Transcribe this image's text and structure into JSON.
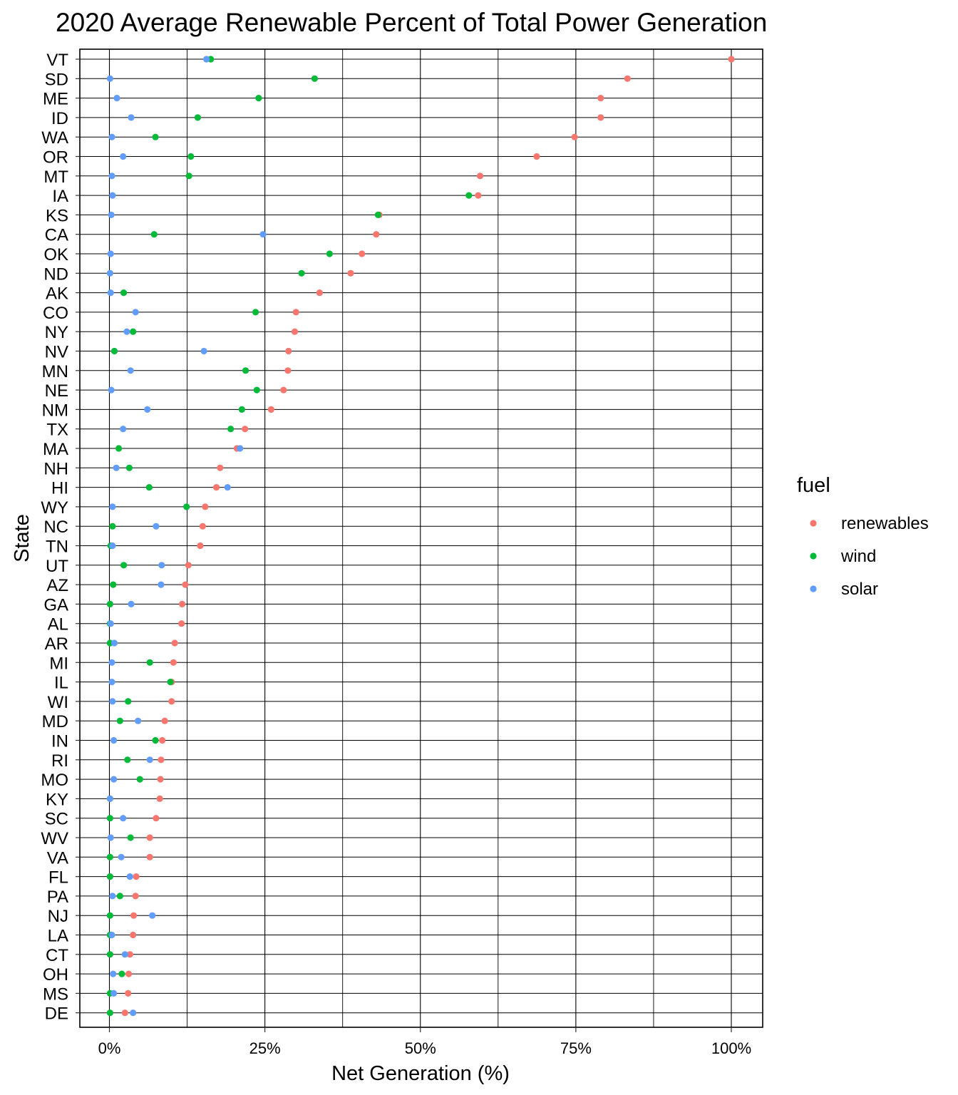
{
  "chart_data": {
    "type": "scatter",
    "title": "2020 Average Renewable Percent of Total Power Generation",
    "xlabel": "Net Generation (%)",
    "ylabel": "State",
    "xlim": [
      0,
      100
    ],
    "x_ticks": [
      0,
      25,
      50,
      75,
      100
    ],
    "x_tick_labels": [
      "0%",
      "25%",
      "50%",
      "75%",
      "100%"
    ],
    "grid": true,
    "legend": {
      "title": "fuel",
      "position": "right"
    },
    "categories": [
      "VT",
      "SD",
      "ME",
      "ID",
      "WA",
      "OR",
      "MT",
      "IA",
      "KS",
      "CA",
      "OK",
      "ND",
      "AK",
      "CO",
      "NY",
      "NV",
      "MN",
      "NE",
      "NM",
      "TX",
      "MA",
      "NH",
      "HI",
      "WY",
      "NC",
      "TN",
      "UT",
      "AZ",
      "GA",
      "AL",
      "AR",
      "MI",
      "IL",
      "WI",
      "MD",
      "IN",
      "RI",
      "MO",
      "KY",
      "SC",
      "WV",
      "VA",
      "FL",
      "PA",
      "NJ",
      "LA",
      "CT",
      "OH",
      "MS",
      "DE"
    ],
    "series": [
      {
        "name": "renewables",
        "color": "#F8766D",
        "values": [
          100.0,
          83.3,
          79.0,
          79.0,
          74.8,
          68.7,
          59.6,
          59.3,
          43.4,
          42.9,
          40.6,
          38.8,
          33.8,
          30.0,
          29.8,
          28.8,
          28.7,
          28.0,
          26.0,
          21.8,
          20.5,
          17.8,
          17.2,
          15.4,
          15.0,
          14.6,
          12.7,
          12.2,
          11.7,
          11.6,
          10.5,
          10.3,
          10.0,
          10.0,
          8.9,
          8.5,
          8.3,
          8.2,
          8.1,
          7.5,
          6.5,
          6.5,
          4.3,
          4.2,
          3.9,
          3.8,
          3.3,
          3.1,
          3.0,
          2.5
        ]
      },
      {
        "name": "wind",
        "color": "#00BA38",
        "values": [
          16.3,
          33.0,
          24.0,
          14.2,
          7.4,
          13.1,
          12.8,
          57.8,
          43.2,
          7.2,
          35.4,
          30.9,
          2.3,
          23.5,
          3.8,
          0.8,
          21.9,
          23.7,
          21.3,
          19.5,
          1.5,
          3.2,
          6.4,
          12.4,
          0.5,
          0.2,
          2.3,
          0.6,
          0.1,
          0.1,
          0.1,
          6.5,
          9.8,
          3.0,
          1.7,
          7.4,
          2.9,
          4.9,
          0.1,
          0.1,
          3.4,
          0.1,
          0.1,
          1.7,
          0.1,
          0.1,
          0.1,
          2.0,
          0.1,
          0.1
        ]
      },
      {
        "name": "solar",
        "color": "#619CFF",
        "values": [
          15.6,
          0.1,
          1.2,
          3.5,
          0.4,
          2.2,
          0.4,
          0.5,
          0.3,
          24.7,
          0.2,
          0.1,
          0.2,
          4.2,
          2.8,
          15.2,
          3.4,
          0.3,
          6.1,
          2.2,
          21.0,
          1.1,
          19.0,
          0.5,
          7.5,
          0.5,
          8.4,
          8.3,
          3.5,
          0.2,
          0.8,
          0.4,
          0.4,
          0.5,
          4.6,
          0.7,
          6.5,
          0.7,
          0.1,
          2.2,
          0.2,
          1.9,
          3.3,
          0.5,
          6.9,
          0.4,
          2.5,
          0.6,
          0.7,
          3.8
        ]
      }
    ]
  }
}
